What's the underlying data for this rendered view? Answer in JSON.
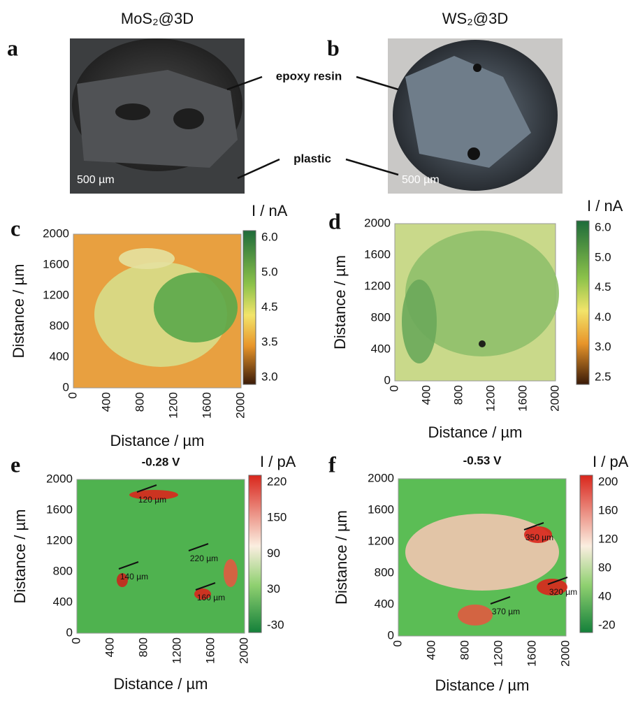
{
  "photos": {
    "panels": [
      {
        "letter": "a",
        "title": "MoS₂@3D",
        "scale_bar": "500 µm"
      },
      {
        "letter": "b",
        "title": "WS₂@3D",
        "scale_bar": "500 µm"
      }
    ],
    "labels": [
      "epoxy resin",
      "plastic"
    ]
  },
  "maps": [
    {
      "letter": "c",
      "subtitle": null,
      "colorbar_title": "I / nA",
      "colorbar_ticks": [
        "6.0",
        "5.0",
        "4.5",
        "3.5",
        "3.0"
      ],
      "xlabel": "Distance / µm",
      "ylabel": "Distance / µm",
      "xticks": [
        "0",
        "400",
        "800",
        "1200",
        "1600",
        "2000"
      ],
      "yticks": [
        "0",
        "400",
        "800",
        "1200",
        "1600",
        "2000"
      ],
      "annotations": []
    },
    {
      "letter": "d",
      "subtitle": null,
      "colorbar_title": "I / nA",
      "colorbar_ticks": [
        "6.0",
        "5.0",
        "4.5",
        "4.0",
        "3.0",
        "2.5"
      ],
      "xlabel": "Distance / µm",
      "ylabel": "Distance / µm",
      "xticks": [
        "0",
        "400",
        "800",
        "1200",
        "1600",
        "2000"
      ],
      "yticks": [
        "0",
        "400",
        "800",
        "1200",
        "1600",
        "2000"
      ],
      "annotations": []
    },
    {
      "letter": "e",
      "subtitle": "-0.28 V",
      "colorbar_title": "I / pA",
      "colorbar_ticks": [
        "220",
        "150",
        "90",
        "30",
        "-30"
      ],
      "xlabel": "Distance / µm",
      "ylabel": "Distance / µm",
      "xticks": [
        "0",
        "400",
        "800",
        "1200",
        "1600",
        "2000"
      ],
      "yticks": [
        "0",
        "400",
        "800",
        "1200",
        "1600",
        "2000"
      ],
      "annotations": [
        "120 µm",
        "220 µm",
        "140 µm",
        "160 µm"
      ]
    },
    {
      "letter": "f",
      "subtitle": "-0.53 V",
      "colorbar_title": "I / pA",
      "colorbar_ticks": [
        "200",
        "160",
        "120",
        "80",
        "40",
        "-20"
      ],
      "xlabel": "Distance / µm",
      "ylabel": "Distance / µm",
      "xticks": [
        "0",
        "400",
        "800",
        "1200",
        "1600",
        "2000"
      ],
      "yticks": [
        "0",
        "400",
        "800",
        "1200",
        "1600",
        "2000"
      ],
      "annotations": [
        "350 µm",
        "320 µm",
        "370 µm"
      ]
    }
  ]
}
